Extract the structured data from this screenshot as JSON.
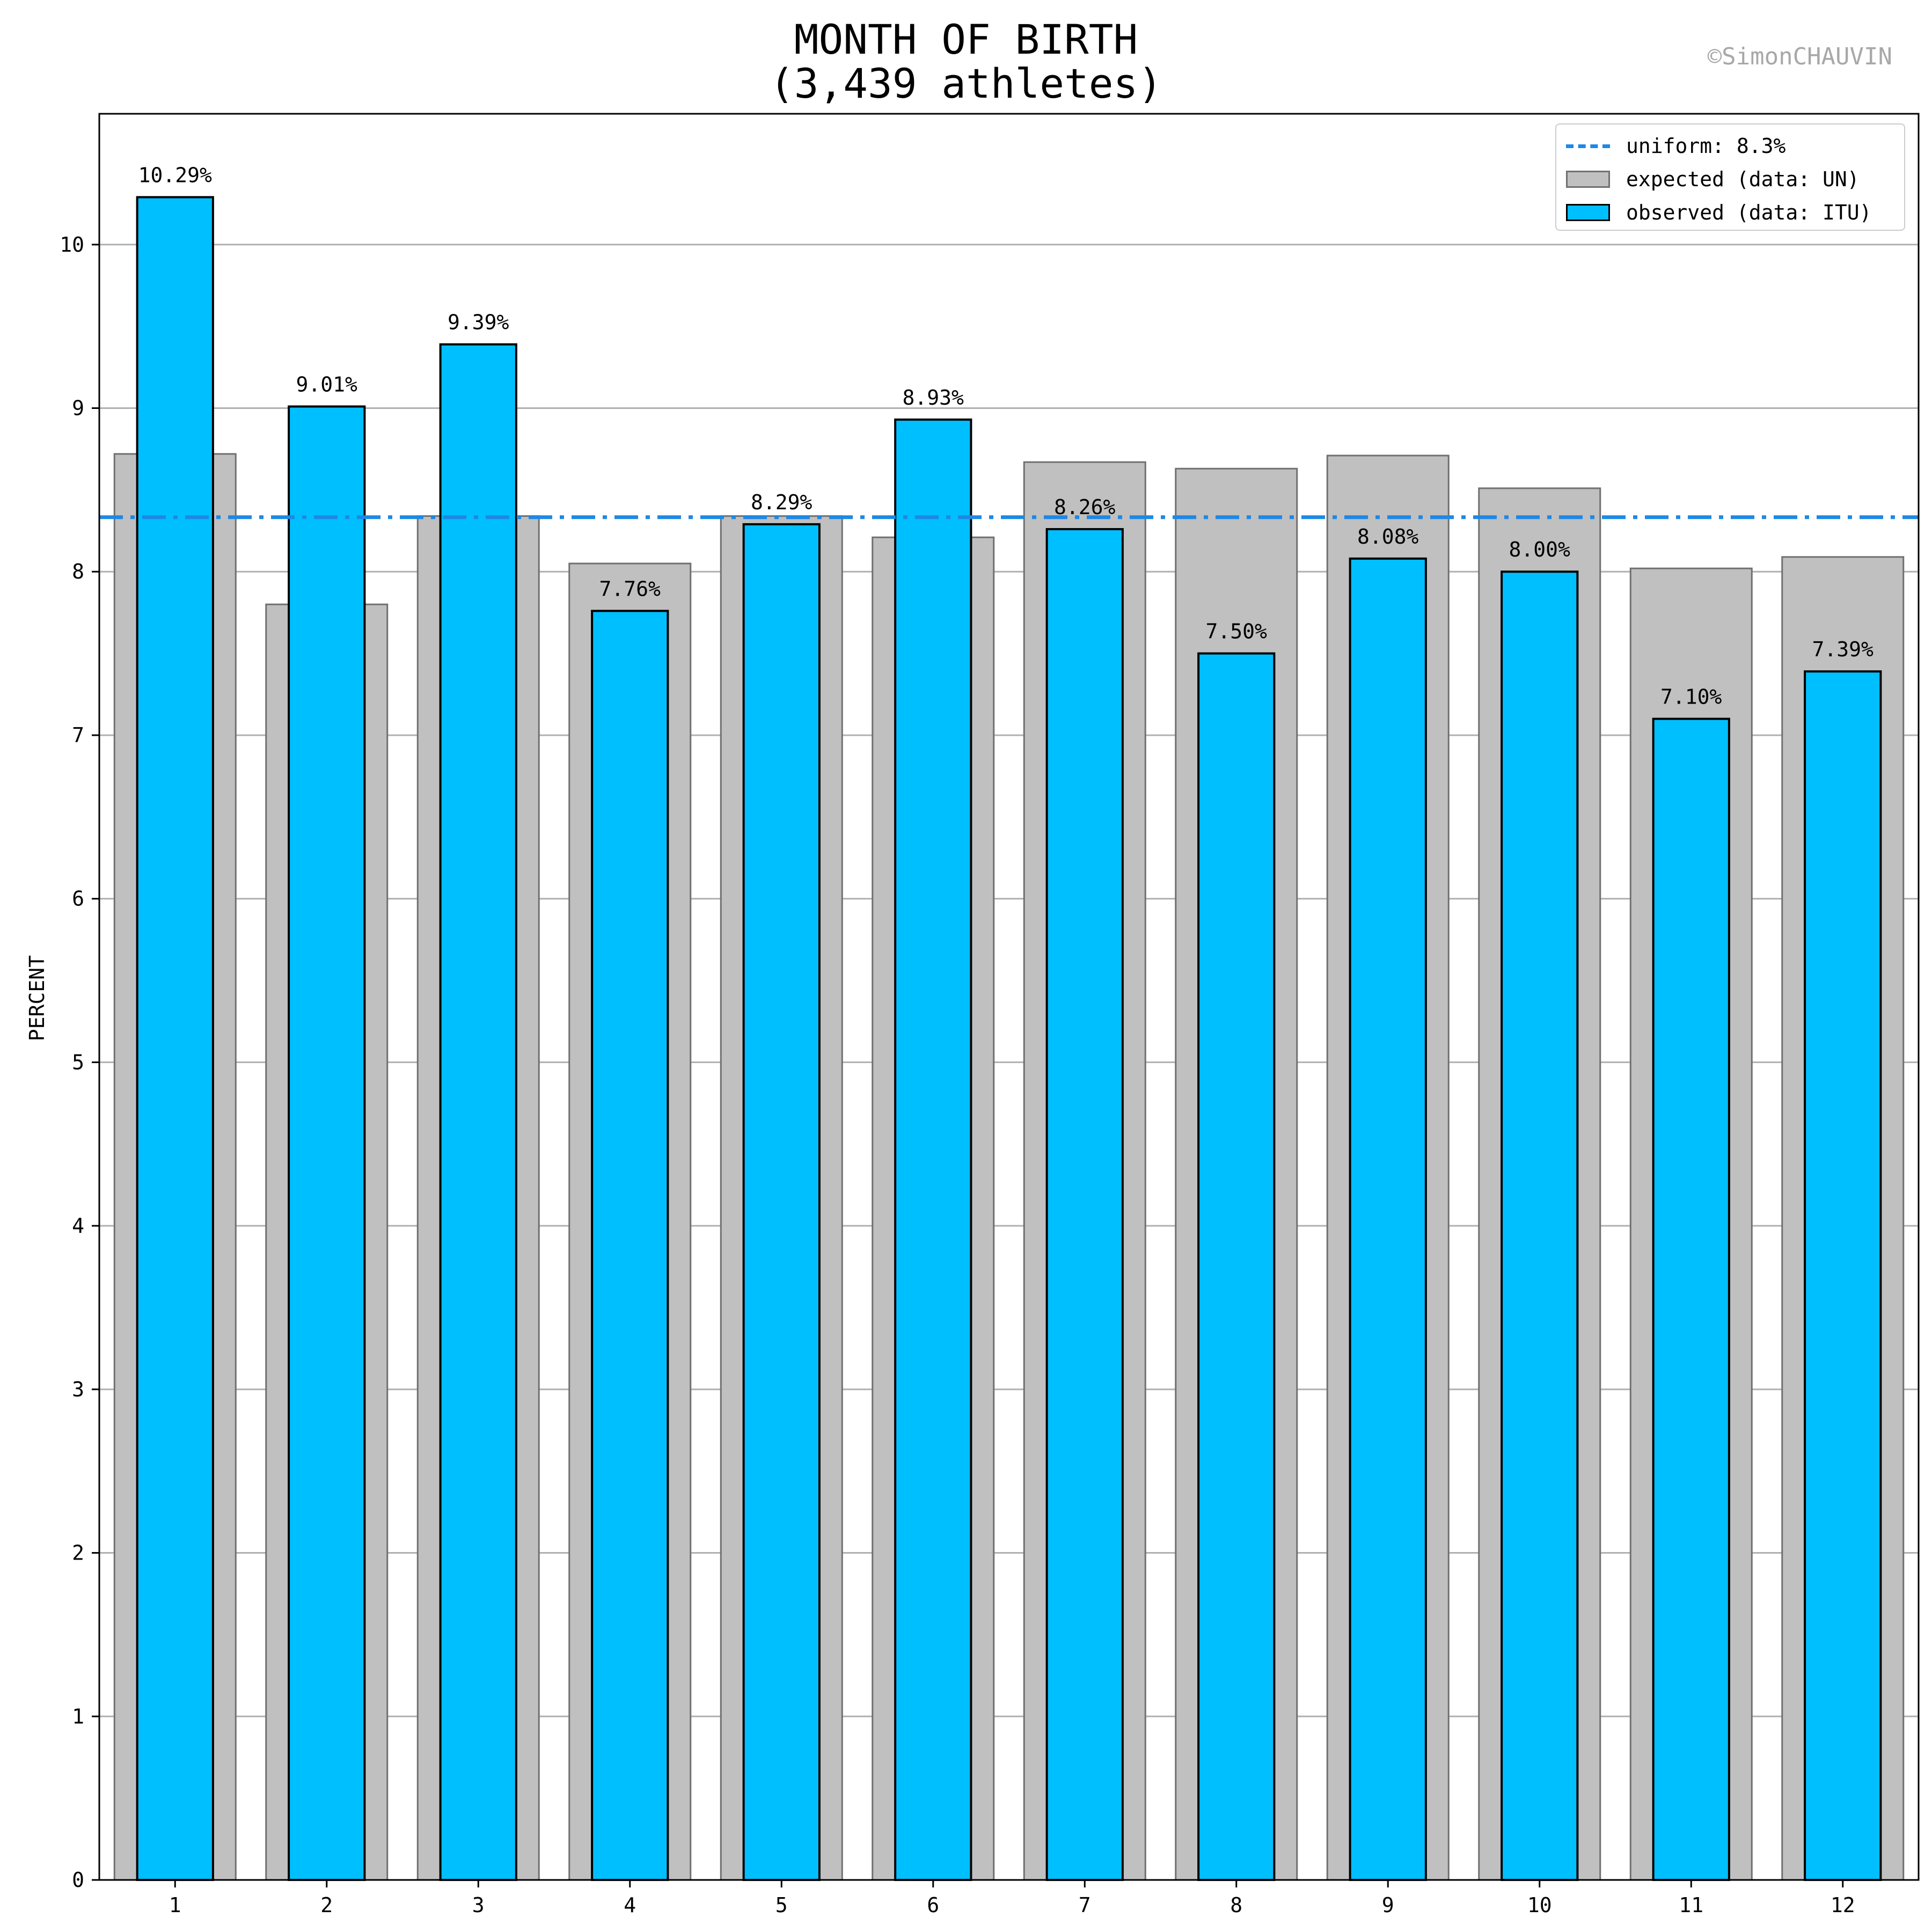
{
  "title": {
    "line1": "MONTH OF BIRTH",
    "line2": "(3,439 athletes)"
  },
  "watermark": "©SimonCHAUVIN",
  "legend": {
    "uniform": "uniform: 8.3%",
    "expected": "expected (data: UN)",
    "observed": "observed (data: ITU)"
  },
  "colors": {
    "observed": "#00bfff",
    "expected": "#c0c0c0",
    "uniform": "#1e88e5",
    "grid": "#b0b0b0"
  },
  "chart_data": {
    "type": "bar",
    "xlabel": "",
    "ylabel": "PERCENT",
    "ylim": [
      0,
      10.8
    ],
    "yticks": [
      0,
      1,
      2,
      3,
      4,
      5,
      6,
      7,
      8,
      9,
      10
    ],
    "grid": "horizontal",
    "legend_position": "top-right",
    "categories": [
      "1",
      "2",
      "3",
      "4",
      "5",
      "6",
      "7",
      "8",
      "9",
      "10",
      "11",
      "12"
    ],
    "series": [
      {
        "name": "expected (data: UN)",
        "values": [
          8.72,
          7.8,
          8.34,
          8.05,
          8.34,
          8.21,
          8.67,
          8.63,
          8.71,
          8.51,
          8.02,
          8.09
        ]
      },
      {
        "name": "observed (data: ITU)",
        "values": [
          10.29,
          9.01,
          9.39,
          7.76,
          8.29,
          8.93,
          8.26,
          7.5,
          8.08,
          8.0,
          7.1,
          7.39
        ],
        "data_labels": [
          "10.29%",
          "9.01%",
          "9.39%",
          "7.76%",
          "8.29%",
          "8.93%",
          "8.26%",
          "7.50%",
          "8.08%",
          "8.00%",
          "7.10%",
          "7.39%"
        ]
      }
    ],
    "reference_line": {
      "name": "uniform: 8.3%",
      "value": 8.333,
      "style": "dash-dot"
    }
  }
}
